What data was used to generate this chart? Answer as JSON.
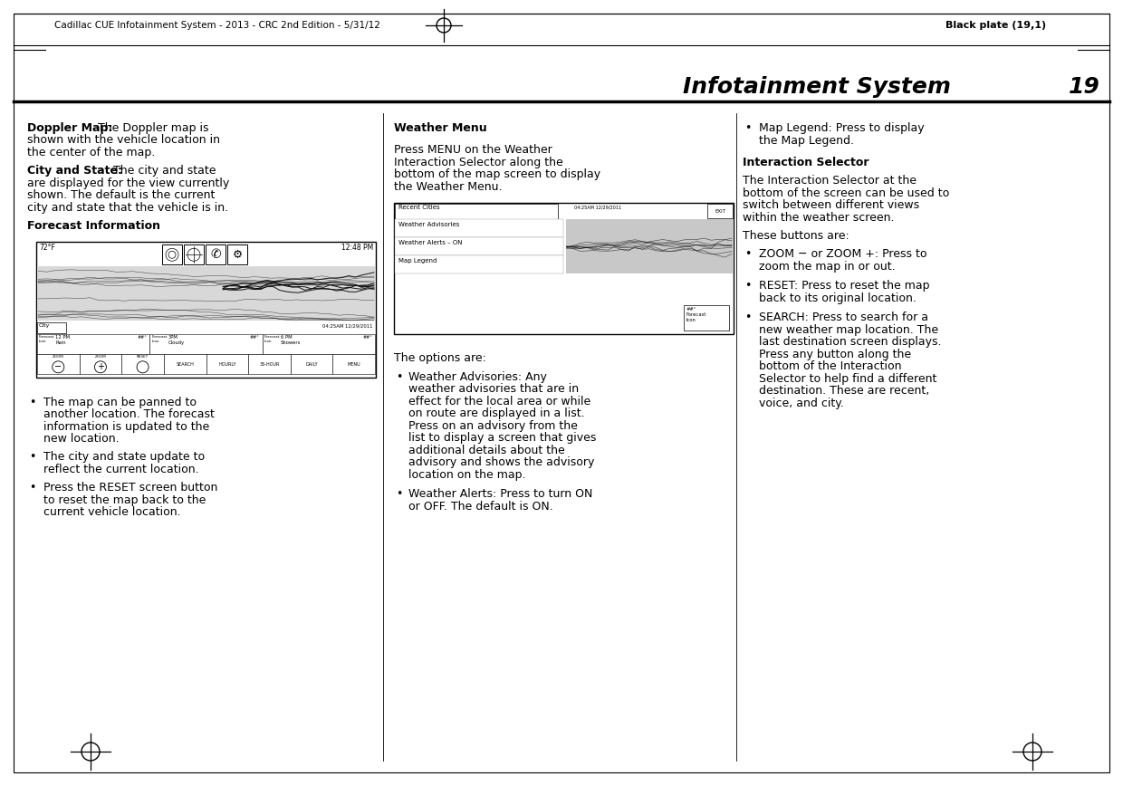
{
  "page_bg": "#ffffff",
  "header_left": "Cadillac CUE Infotainment System - 2013 - CRC 2nd Edition - 5/31/12",
  "header_right": "Black plate (19,1)",
  "section_title": "Infotainment System",
  "section_number": "19",
  "col1_heading1_bold": "Doppler Map:",
  "col1_text1": "  The Doppler map is shown with the vehicle location in the center of the map.",
  "col1_heading2_bold": "City and State:",
  "col1_text2": "  The city and state are displayed for the view currently shown. The default is the current city and state that the vehicle is in.",
  "col1_heading3": "Forecast Information",
  "col1_bullets": [
    "The map can be panned to another location. The forecast information is updated to the new location.",
    "The city and state update to reflect the current location.",
    "Press the RESET screen button to reset the map back to the current vehicle location."
  ],
  "col2_heading1": "Weather Menu",
  "col2_text1": "Press MENU on the Weather Interaction Selector along the bottom of the map screen to display the Weather Menu.",
  "col2_text2": "The options are:",
  "col2_bullets": [
    "Weather Advisories: Any weather advisories that are in effect for the local area or while on route are displayed in a list. Press on an advisory from the list to display a screen that gives additional details about the advisory and shows the advisory location on the map.",
    "Weather Alerts: Press to turn ON or OFF. The default is ON."
  ],
  "col3_bullet1": "Map Legend: Press to display the Map Legend.",
  "col3_heading1": "Interaction Selector",
  "col3_text1": "The Interaction Selector at the bottom of the screen can be used to switch between different views within the weather screen.",
  "col3_text2": "These buttons are:",
  "col3_bullets": [
    "ZOOM − or ZOOM +: Press to zoom the map in or out.",
    "RESET: Press to reset the map back to its original location.",
    "SEARCH: Press to search for a new weather map location. The last destination screen displays. Press any button along the bottom of the Interaction Selector to help find a different destination. These are recent, voice, and city."
  ]
}
